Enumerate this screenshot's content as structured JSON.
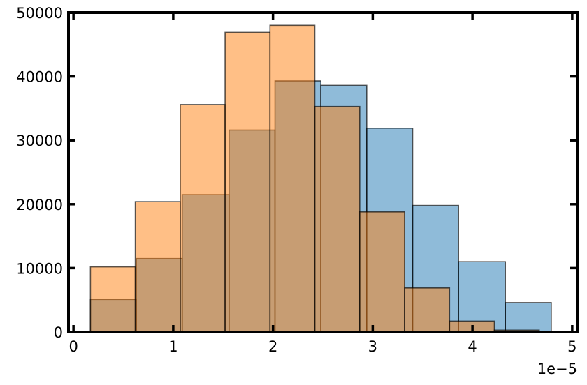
{
  "chart_data": {
    "type": "bar",
    "title": "",
    "xlabel": "",
    "ylabel": "",
    "x_offset_label": "1e−5",
    "xlim": [
      -0.05,
      5.05
    ],
    "ylim": [
      0,
      50000
    ],
    "x_ticks": [
      0,
      1,
      2,
      3,
      4,
      5
    ],
    "x_tick_labels": [
      "0",
      "1",
      "2",
      "3",
      "4",
      "5"
    ],
    "y_ticks": [
      0,
      10000,
      20000,
      30000,
      40000,
      50000
    ],
    "y_tick_labels": [
      "0",
      "10000",
      "20000",
      "30000",
      "40000",
      "50000"
    ],
    "grid": false,
    "legend": "none",
    "series": [
      {
        "color": "#1f77b4",
        "opacity": 0.5,
        "bins": [
          {
            "x0": 0.17,
            "x1": 0.63,
            "value": 5100
          },
          {
            "x0": 0.63,
            "x1": 1.09,
            "value": 11500
          },
          {
            "x0": 1.09,
            "x1": 1.56,
            "value": 21500
          },
          {
            "x0": 1.56,
            "x1": 2.02,
            "value": 31600
          },
          {
            "x0": 2.02,
            "x1": 2.48,
            "value": 39300
          },
          {
            "x0": 2.48,
            "x1": 2.94,
            "value": 38600
          },
          {
            "x0": 2.94,
            "x1": 3.4,
            "value": 31900
          },
          {
            "x0": 3.4,
            "x1": 3.86,
            "value": 19800
          },
          {
            "x0": 3.86,
            "x1": 4.33,
            "value": 11000
          },
          {
            "x0": 4.33,
            "x1": 4.79,
            "value": 4600
          }
        ]
      },
      {
        "color": "#ff7f0e",
        "opacity": 0.5,
        "bins": [
          {
            "x0": 0.17,
            "x1": 0.62,
            "value": 10200
          },
          {
            "x0": 0.62,
            "x1": 1.07,
            "value": 20400
          },
          {
            "x0": 1.07,
            "x1": 1.52,
            "value": 35600
          },
          {
            "x0": 1.52,
            "x1": 1.97,
            "value": 46900
          },
          {
            "x0": 1.97,
            "x1": 2.42,
            "value": 48000
          },
          {
            "x0": 2.42,
            "x1": 2.87,
            "value": 35300
          },
          {
            "x0": 2.87,
            "x1": 3.32,
            "value": 18800
          },
          {
            "x0": 3.32,
            "x1": 3.77,
            "value": 6900
          },
          {
            "x0": 3.77,
            "x1": 4.22,
            "value": 1700
          },
          {
            "x0": 4.22,
            "x1": 4.67,
            "value": 300
          }
        ]
      }
    ]
  }
}
